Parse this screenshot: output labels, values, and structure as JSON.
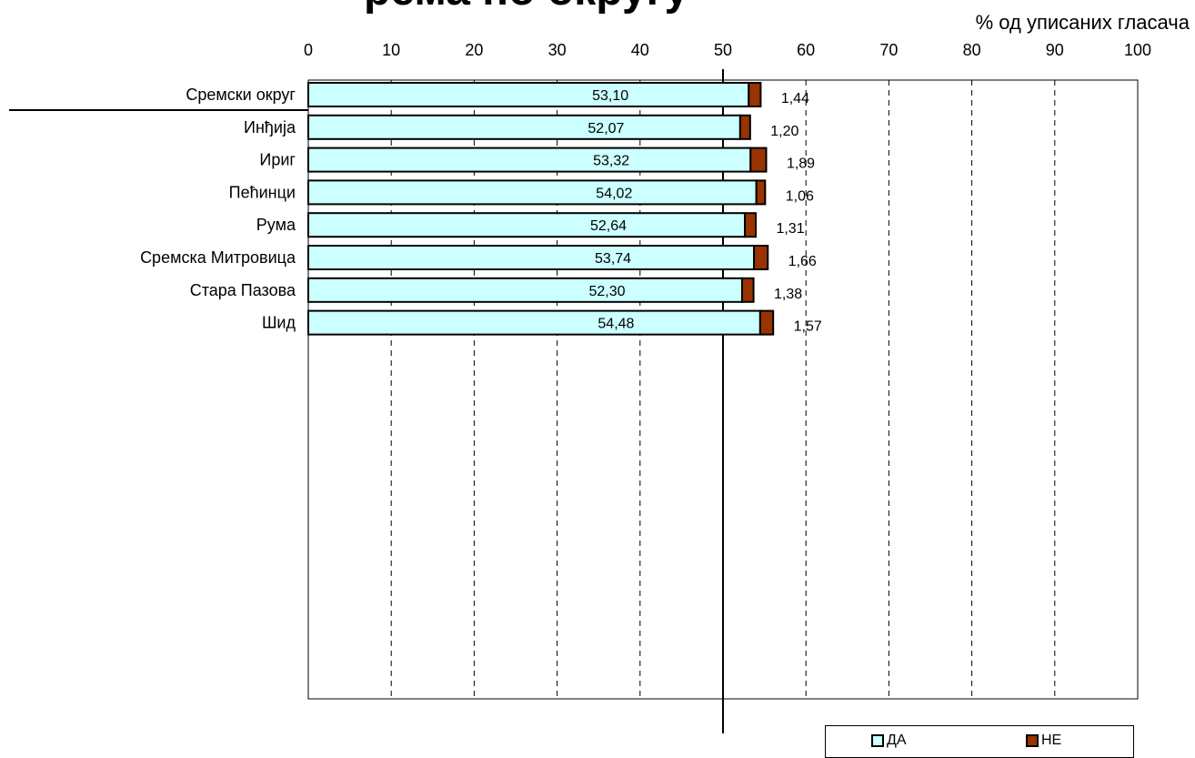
{
  "title_fragment": "рема по округу",
  "unit_label": "% од уписаних гласача",
  "colors": {
    "da": "#ccffff",
    "ne": "#993300",
    "axis": "#000000",
    "grid": "#000000"
  },
  "legend": {
    "da_label": "ДА",
    "ne_label": "НЕ"
  },
  "chart_data": {
    "type": "bar",
    "orientation": "horizontal",
    "stacked": true,
    "xlim": [
      0,
      100
    ],
    "xticks": [
      "0",
      "10",
      "20",
      "30",
      "40",
      "50",
      "60",
      "70",
      "80",
      "90",
      "100"
    ],
    "reference_line": 50,
    "grid": "vertical dashed",
    "legend_position": "bottom-right",
    "categories": [
      "Сремски округ",
      "Инђија",
      "Ириг",
      "Пећинци",
      "Рума",
      "Сремска Митровица",
      "Стара Пазова",
      "Шид"
    ],
    "series": [
      {
        "name": "ДА",
        "values": [
          53.1,
          52.07,
          53.32,
          54.02,
          52.64,
          53.74,
          52.3,
          54.48
        ],
        "labels": [
          "53,10",
          "52,07",
          "53,32",
          "54,02",
          "52,64",
          "53,74",
          "52,30",
          "54,48"
        ]
      },
      {
        "name": "НЕ",
        "values": [
          1.44,
          1.2,
          1.89,
          1.06,
          1.31,
          1.66,
          1.38,
          1.57
        ],
        "labels": [
          "1,44",
          "1,20",
          "1,89",
          "1,06",
          "1,31",
          "1,66",
          "1,38",
          "1,57"
        ]
      }
    ]
  }
}
